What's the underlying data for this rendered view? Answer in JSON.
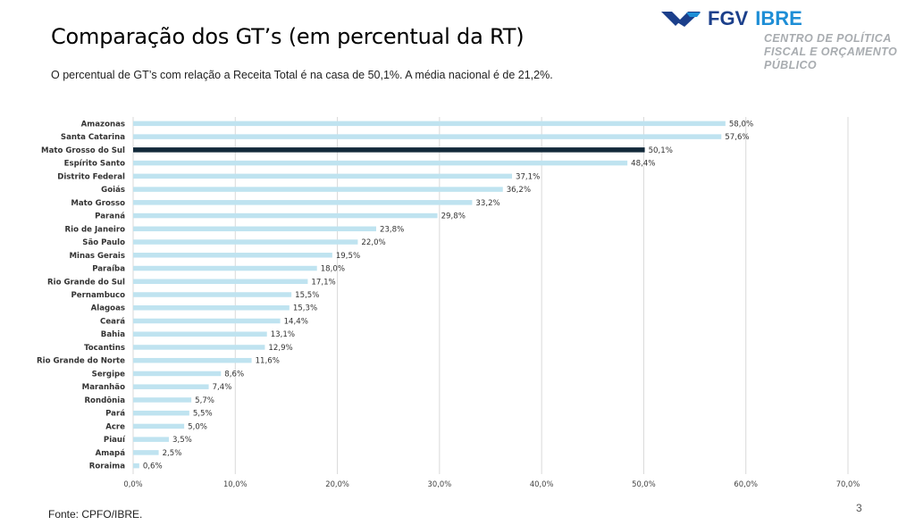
{
  "header": {
    "title": "Comparação dos GT’s (em percentual da RT)",
    "subtitle": "O percentual de GT’s com relação a Receita Total é na casa de 50,1%. A média nacional é de 21,2%."
  },
  "logo": {
    "mark_icon": "fgv-chevron-logo-icon",
    "brand": "FGV",
    "brand_secondary": "IBRE",
    "tagline": [
      "CENTRO DE POLÍTICA",
      "FISCAL E ORÇAMENTO",
      "PÚBLICO"
    ],
    "colors": {
      "fgv": "#1b3f8b",
      "ibre": "#1e8ed6",
      "tagline": "#a8acb0"
    }
  },
  "footer": {
    "source": "Fonte: CPFO/IBRE.",
    "page_number": "3"
  },
  "chart_data": {
    "type": "bar",
    "orientation": "horizontal",
    "title": "",
    "xlabel": "",
    "ylabel": "",
    "xlim": [
      0,
      70
    ],
    "x_ticks": [
      0,
      10,
      20,
      30,
      40,
      50,
      60,
      70
    ],
    "x_tick_labels": [
      "0,0%",
      "10,0%",
      "20,0%",
      "30,0%",
      "40,0%",
      "50,0%",
      "60,0%",
      "70,0%"
    ],
    "grid": "vertical",
    "legend": "none",
    "highlight_category": "Mato Grosso do Sul",
    "colors": {
      "default": "#bfe3f0",
      "highlight": "#13293a",
      "grid": "#d9d9d9"
    },
    "categories": [
      "Amazonas",
      "Santa Catarina",
      "Mato Grosso do Sul",
      "Espírito Santo",
      "Distrito Federal",
      "Goiás",
      "Mato Grosso",
      "Paraná",
      "Rio de Janeiro",
      "São Paulo",
      "Minas Gerais",
      "Paraíba",
      "Rio Grande do Sul",
      "Pernambuco",
      "Alagoas",
      "Ceará",
      "Bahia",
      "Tocantins",
      "Rio Grande do Norte",
      "Sergipe",
      "Maranhão",
      "Rondônia",
      "Pará",
      "Acre",
      "Piauí",
      "Amapá",
      "Roraima"
    ],
    "values": [
      58.0,
      57.6,
      50.1,
      48.4,
      37.1,
      36.2,
      33.2,
      29.8,
      23.8,
      22.0,
      19.5,
      18.0,
      17.1,
      15.5,
      15.3,
      14.4,
      13.1,
      12.9,
      11.6,
      8.6,
      7.4,
      5.7,
      5.5,
      5.0,
      3.5,
      2.5,
      0.6
    ],
    "value_labels": [
      "58,0%",
      "57,6%",
      "50,1%",
      "48,4%",
      "37,1%",
      "36,2%",
      "33,2%",
      "29,8%",
      "23,8%",
      "22,0%",
      "19,5%",
      "18,0%",
      "17,1%",
      "15,5%",
      "15,3%",
      "14,4%",
      "13,1%",
      "12,9%",
      "11,6%",
      "8,6%",
      "7,4%",
      "5,7%",
      "5,5%",
      "5,0%",
      "3,5%",
      "2,5%",
      "0,6%"
    ]
  }
}
